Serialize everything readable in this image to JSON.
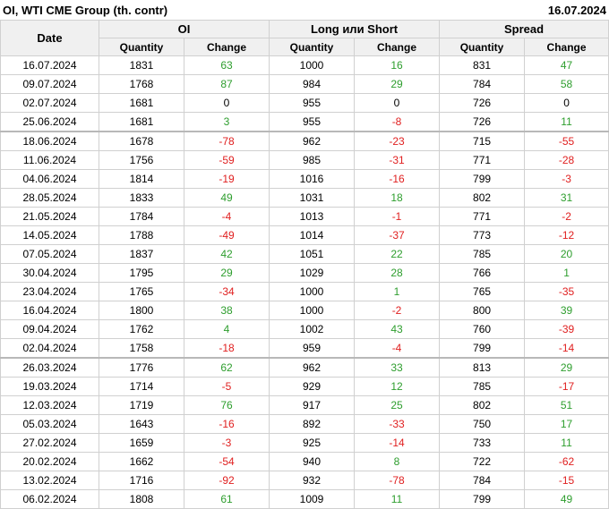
{
  "header": {
    "title": "OI, WTI CME Group (th. contr)",
    "date": "16.07.2024"
  },
  "table": {
    "date_header": "Date",
    "groups": [
      {
        "name": "OI",
        "columns": [
          "Quantity",
          "Change"
        ]
      },
      {
        "name": "Long или Short",
        "columns": [
          "Quantity",
          "Change"
        ]
      },
      {
        "name": "Spread",
        "columns": [
          "Quantity",
          "Change"
        ]
      }
    ],
    "positive_color": "#2e9e2e",
    "negative_color": "#e02020",
    "rows": [
      [
        "16.07.2024",
        1831,
        63,
        1000,
        16,
        831,
        47
      ],
      [
        "09.07.2024",
        1768,
        87,
        984,
        29,
        784,
        58
      ],
      [
        "02.07.2024",
        1681,
        0,
        955,
        0,
        726,
        0
      ],
      [
        "25.06.2024",
        1681,
        3,
        955,
        -8,
        726,
        11
      ],
      [
        "18.06.2024",
        1678,
        -78,
        962,
        -23,
        715,
        -55
      ],
      [
        "11.06.2024",
        1756,
        -59,
        985,
        -31,
        771,
        -28
      ],
      [
        "04.06.2024",
        1814,
        -19,
        1016,
        -16,
        799,
        -3
      ],
      [
        "28.05.2024",
        1833,
        49,
        1031,
        18,
        802,
        31
      ],
      [
        "21.05.2024",
        1784,
        -4,
        1013,
        -1,
        771,
        -2
      ],
      [
        "14.05.2024",
        1788,
        -49,
        1014,
        -37,
        773,
        -12
      ],
      [
        "07.05.2024",
        1837,
        42,
        1051,
        22,
        785,
        20
      ],
      [
        "30.04.2024",
        1795,
        29,
        1029,
        28,
        766,
        1
      ],
      [
        "23.04.2024",
        1765,
        -34,
        1000,
        1,
        765,
        -35
      ],
      [
        "16.04.2024",
        1800,
        38,
        1000,
        -2,
        800,
        39
      ],
      [
        "09.04.2024",
        1762,
        4,
        1002,
        43,
        760,
        -39
      ],
      [
        "02.04.2024",
        1758,
        -18,
        959,
        -4,
        799,
        -14
      ],
      [
        "26.03.2024",
        1776,
        62,
        962,
        33,
        813,
        29
      ],
      [
        "19.03.2024",
        1714,
        -5,
        929,
        12,
        785,
        -17
      ],
      [
        "12.03.2024",
        1719,
        76,
        917,
        25,
        802,
        51
      ],
      [
        "05.03.2024",
        1643,
        -16,
        892,
        -33,
        750,
        17
      ],
      [
        "27.02.2024",
        1659,
        -3,
        925,
        -14,
        733,
        11
      ],
      [
        "20.02.2024",
        1662,
        -54,
        940,
        8,
        722,
        -62
      ],
      [
        "13.02.2024",
        1716,
        -92,
        932,
        -78,
        784,
        -15
      ],
      [
        "06.02.2024",
        1808,
        61,
        1009,
        11,
        799,
        49
      ]
    ]
  }
}
